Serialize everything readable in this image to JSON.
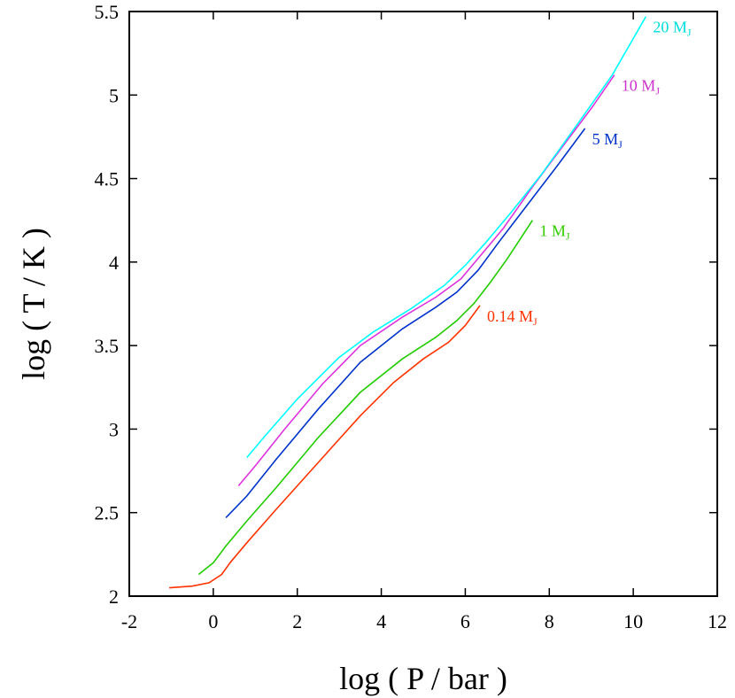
{
  "chart_data": {
    "type": "line",
    "xlabel": "log ( P / bar )",
    "ylabel": "log ( T / K )",
    "xlim": [
      -2,
      12
    ],
    "ylim": [
      2,
      5.5
    ],
    "xticks": [
      -2,
      0,
      2,
      4,
      6,
      8,
      10,
      12
    ],
    "yticks": [
      2,
      2.5,
      3,
      3.5,
      4,
      4.5,
      5,
      5.5
    ],
    "xtick_labels": [
      "-2",
      "0",
      "2",
      "4",
      "6",
      "8",
      "10",
      "12"
    ],
    "ytick_labels": [
      "2",
      "2.5",
      "3",
      "3.5",
      "4",
      "4.5",
      "5",
      "5.5"
    ],
    "grid": false,
    "series": [
      {
        "name": "0.14 M",
        "name_sub": "J",
        "color": "#ff3300",
        "x": [
          -1.05,
          -0.5,
          -0.1,
          0.2,
          0.4,
          0.8,
          1.5,
          2.5,
          3.5,
          4.3,
          5.0,
          5.6,
          6.0,
          6.35
        ],
        "y": [
          2.05,
          2.06,
          2.08,
          2.13,
          2.2,
          2.32,
          2.52,
          2.8,
          3.08,
          3.28,
          3.42,
          3.52,
          3.62,
          3.74
        ]
      },
      {
        "name": "1 M",
        "name_sub": "J",
        "color": "#22cc00",
        "x": [
          -0.35,
          0,
          0.3,
          0.8,
          1.5,
          2.5,
          3.5,
          4.5,
          5.3,
          5.8,
          6.2,
          6.6,
          7.0,
          7.6
        ],
        "y": [
          2.13,
          2.2,
          2.3,
          2.45,
          2.65,
          2.95,
          3.22,
          3.42,
          3.55,
          3.65,
          3.75,
          3.88,
          4.02,
          4.25
        ]
      },
      {
        "name": "5 M",
        "name_sub": "J",
        "color": "#0033cc",
        "x": [
          0.3,
          0.8,
          1.5,
          2.5,
          3.5,
          4.5,
          5.3,
          5.8,
          6.3,
          6.8,
          7.5,
          8.2,
          8.85
        ],
        "y": [
          2.47,
          2.6,
          2.82,
          3.12,
          3.4,
          3.6,
          3.73,
          3.82,
          3.95,
          4.12,
          4.35,
          4.58,
          4.8
        ]
      },
      {
        "name": "10 M",
        "name_sub": "J",
        "color": "#dd33dd",
        "x": [
          0.6,
          1.0,
          1.7,
          2.6,
          3.5,
          4.5,
          5.3,
          5.9,
          6.4,
          6.9,
          7.6,
          8.4,
          9.0,
          9.55
        ],
        "y": [
          2.66,
          2.78,
          3.0,
          3.27,
          3.5,
          3.67,
          3.79,
          3.9,
          4.05,
          4.2,
          4.45,
          4.72,
          4.92,
          5.12
        ]
      },
      {
        "name": "20 M",
        "name_sub": "J",
        "color": "#00ffff",
        "x": [
          0.8,
          1.2,
          2.0,
          3.0,
          3.8,
          4.7,
          5.5,
          6.0,
          6.5,
          7.1,
          7.8,
          8.6,
          9.5,
          10.3
        ],
        "y": [
          2.83,
          2.95,
          3.18,
          3.43,
          3.58,
          3.72,
          3.86,
          3.98,
          4.12,
          4.3,
          4.52,
          4.8,
          5.12,
          5.47
        ]
      }
    ]
  }
}
